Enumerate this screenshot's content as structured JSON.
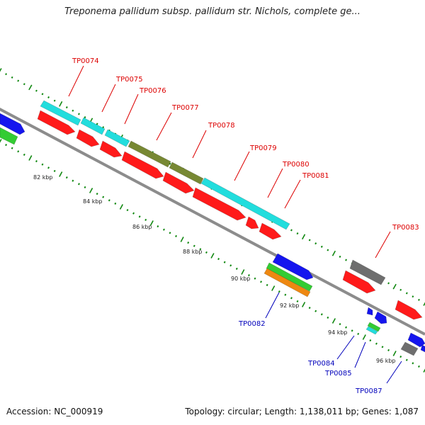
{
  "title": "Treponema pallidum subsp. pallidum str. Nichols, complete ge...",
  "footer": {
    "accession": "Accession: NC_000919",
    "summary": "Topology: circular; Length: 1,138,011 bp; Genes: 1,087"
  },
  "colors": {
    "forward_label": "#dd0000",
    "reverse_label": "#0000bb",
    "tick": "#118811",
    "backbone": "#8c8c8c",
    "red": "#ff1a1a",
    "cyan": "#22dddd",
    "olive": "#778833",
    "blue": "#1515ee",
    "green": "#33cc33",
    "orange": "#ee8811",
    "gray": "#6e6e6e"
  },
  "kbp_labels": [
    "82 kbp",
    "84 kbp",
    "86 kbp",
    "88 kbp",
    "90 kbp",
    "92 kbp",
    "94 kbp",
    "96 kbp"
  ],
  "forward_gene_labels": [
    "TP0074",
    "TP0075",
    "TP0076",
    "TP0077",
    "TP0078",
    "TP0079",
    "TP0080",
    "TP0081",
    "TP0083"
  ],
  "reverse_gene_labels": [
    "TP0082",
    "TP0084",
    "TP0085",
    "TP0087"
  ]
}
